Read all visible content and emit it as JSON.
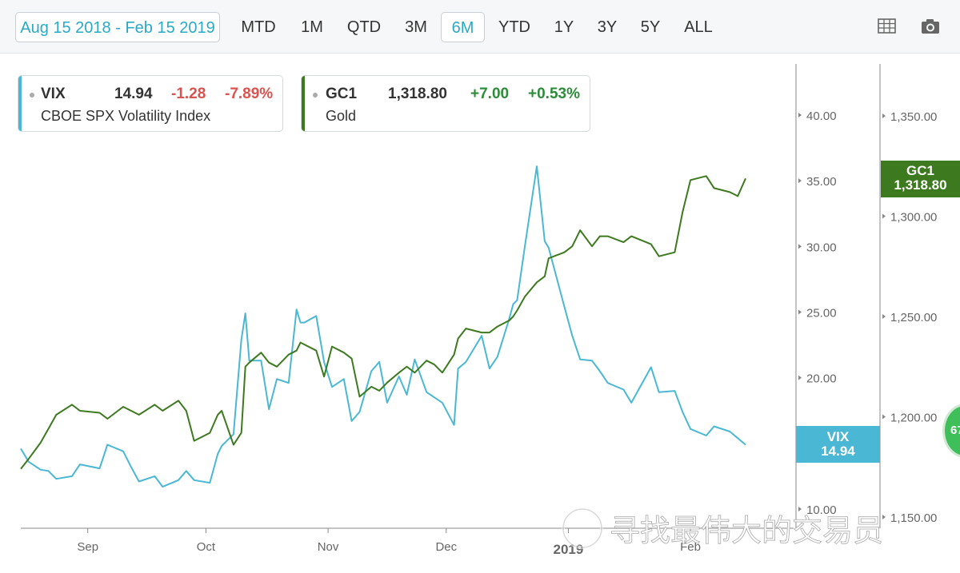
{
  "toolbar": {
    "date_range": "Aug 15 2018 - Feb 15 2019",
    "periods": [
      "MTD",
      "1M",
      "QTD",
      "3M",
      "6M",
      "YTD",
      "1Y",
      "3Y",
      "5Y",
      "ALL"
    ],
    "active_period": "6M",
    "icons": [
      "table-icon",
      "camera-icon"
    ]
  },
  "legend": {
    "vix": {
      "symbol": "VIX",
      "last": "14.94",
      "change": "-1.28",
      "change_pct": "-7.89%",
      "name": "CBOE SPX Volatility Index"
    },
    "gc1": {
      "symbol": "GC1",
      "last": "1,318.80",
      "change": "+7.00",
      "change_pct": "+0.53%",
      "name": "Gold"
    }
  },
  "badges": {
    "gc1": {
      "symbol": "GC1",
      "value": "1,318.80"
    },
    "vix": {
      "symbol": "VIX",
      "value": "14.94"
    },
    "edge": "67"
  },
  "watermark": "寻找最伟大的交易员",
  "colors": {
    "vix": "#4ab8d4",
    "gold": "#3d7a1f",
    "active": "#2aa9c7",
    "gold_badge": "#3d7a1f",
    "vix_badge": "#4ab8d4"
  },
  "chart_data": {
    "type": "line",
    "x_tick_labels": [
      "Sep",
      "Oct",
      "Nov",
      "Dec",
      "2019",
      "Feb"
    ],
    "x_tick_dates": [
      "2018-09-01",
      "2018-10-01",
      "2018-11-01",
      "2018-12-01",
      "2019-01-01",
      "2019-02-01"
    ],
    "y_left": {
      "ticks": [
        "10.00",
        "15.00",
        "20.00",
        "25.00",
        "30.00",
        "35.00",
        "40.00"
      ],
      "range": [
        10,
        42
      ]
    },
    "y_right": {
      "ticks": [
        "1,150.00",
        "1,200.00",
        "1,250.00",
        "1,300.00",
        "1,350.00"
      ],
      "range": [
        1150,
        1355
      ]
    },
    "series": [
      {
        "name": "VIX",
        "axis": "left",
        "x": [
          "2018-08-15",
          "2018-08-17",
          "2018-08-20",
          "2018-08-22",
          "2018-08-24",
          "2018-08-28",
          "2018-08-30",
          "2018-09-04",
          "2018-09-06",
          "2018-09-10",
          "2018-09-12",
          "2018-09-14",
          "2018-09-18",
          "2018-09-20",
          "2018-09-24",
          "2018-09-26",
          "2018-09-28",
          "2018-10-02",
          "2018-10-04",
          "2018-10-05",
          "2018-10-08",
          "2018-10-10",
          "2018-10-11",
          "2018-10-12",
          "2018-10-15",
          "2018-10-17",
          "2018-10-19",
          "2018-10-22",
          "2018-10-24",
          "2018-10-25",
          "2018-10-26",
          "2018-10-29",
          "2018-10-31",
          "2018-11-02",
          "2018-11-05",
          "2018-11-07",
          "2018-11-09",
          "2018-11-12",
          "2018-11-14",
          "2018-11-16",
          "2018-11-19",
          "2018-11-21",
          "2018-11-23",
          "2018-11-26",
          "2018-11-28",
          "2018-11-30",
          "2018-12-03",
          "2018-12-04",
          "2018-12-06",
          "2018-12-10",
          "2018-12-12",
          "2018-12-14",
          "2018-12-17",
          "2018-12-18",
          "2018-12-19",
          "2018-12-21",
          "2018-12-24",
          "2018-12-26",
          "2018-12-27",
          "2018-12-31",
          "2019-01-02",
          "2019-01-04",
          "2019-01-07",
          "2019-01-09",
          "2019-01-11",
          "2019-01-15",
          "2019-01-17",
          "2019-01-22",
          "2019-01-24",
          "2019-01-28",
          "2019-01-30",
          "2019-02-01",
          "2019-02-05",
          "2019-02-07",
          "2019-02-11",
          "2019-02-13",
          "2019-02-15"
        ],
        "values": [
          14.6,
          13.6,
          13.0,
          12.9,
          12.3,
          12.5,
          13.4,
          13.1,
          14.9,
          14.4,
          13.2,
          12.1,
          12.5,
          11.7,
          12.2,
          12.9,
          12.2,
          12.0,
          14.2,
          14.8,
          15.7,
          22.9,
          24.9,
          21.3,
          21.3,
          17.6,
          19.9,
          19.6,
          25.2,
          24.2,
          24.2,
          24.7,
          21.2,
          19.3,
          19.9,
          16.7,
          17.4,
          20.5,
          21.2,
          18.1,
          20.1,
          18.7,
          21.4,
          18.9,
          18.5,
          18.1,
          16.4,
          20.7,
          21.2,
          23.2,
          20.7,
          21.6,
          24.5,
          25.6,
          25.9,
          30.1,
          36.1,
          30.4,
          29.9,
          25.4,
          23.2,
          21.4,
          21.3,
          20.5,
          19.6,
          19.1,
          18.1,
          20.8,
          18.9,
          19.0,
          17.4,
          16.1,
          15.6,
          16.3,
          15.9,
          15.4,
          14.9
        ]
      },
      {
        "name": "GC1",
        "axis": "right",
        "x": [
          "2018-08-15",
          "2018-08-17",
          "2018-08-20",
          "2018-08-22",
          "2018-08-24",
          "2018-08-28",
          "2018-08-30",
          "2018-09-04",
          "2018-09-06",
          "2018-09-10",
          "2018-09-12",
          "2018-09-14",
          "2018-09-18",
          "2018-09-20",
          "2018-09-24",
          "2018-09-26",
          "2018-09-28",
          "2018-10-02",
          "2018-10-04",
          "2018-10-05",
          "2018-10-08",
          "2018-10-10",
          "2018-10-11",
          "2018-10-12",
          "2018-10-15",
          "2018-10-17",
          "2018-10-19",
          "2018-10-22",
          "2018-10-24",
          "2018-10-25",
          "2018-10-26",
          "2018-10-29",
          "2018-10-31",
          "2018-11-02",
          "2018-11-05",
          "2018-11-07",
          "2018-11-09",
          "2018-11-12",
          "2018-11-14",
          "2018-11-16",
          "2018-11-19",
          "2018-11-21",
          "2018-11-23",
          "2018-11-26",
          "2018-11-28",
          "2018-11-30",
          "2018-12-03",
          "2018-12-04",
          "2018-12-06",
          "2018-12-10",
          "2018-12-12",
          "2018-12-14",
          "2018-12-17",
          "2018-12-18",
          "2018-12-19",
          "2018-12-21",
          "2018-12-24",
          "2018-12-26",
          "2018-12-27",
          "2018-12-31",
          "2019-01-02",
          "2019-01-04",
          "2019-01-07",
          "2019-01-09",
          "2019-01-11",
          "2019-01-15",
          "2019-01-17",
          "2019-01-22",
          "2019-01-24",
          "2019-01-28",
          "2019-01-30",
          "2019-02-01",
          "2019-02-05",
          "2019-02-07",
          "2019-02-11",
          "2019-02-13",
          "2019-02-15"
        ],
        "values": [
          1174,
          1179,
          1187,
          1194,
          1201,
          1206,
          1203,
          1202,
          1199,
          1205,
          1203,
          1201,
          1206,
          1203,
          1208,
          1203,
          1188,
          1192,
          1201,
          1203,
          1186,
          1192,
          1225,
          1227,
          1232,
          1227,
          1225,
          1231,
          1233,
          1237,
          1236,
          1233,
          1220,
          1235,
          1232,
          1229,
          1210,
          1215,
          1213,
          1217,
          1222,
          1225,
          1222,
          1228,
          1226,
          1222,
          1231,
          1239,
          1244,
          1242,
          1242,
          1245,
          1248,
          1250,
          1253,
          1260,
          1267,
          1270,
          1279,
          1282,
          1285,
          1293,
          1285,
          1290,
          1290,
          1287,
          1290,
          1286,
          1280,
          1282,
          1302,
          1318,
          1320,
          1314,
          1312,
          1310,
          1318.8
        ]
      }
    ]
  }
}
